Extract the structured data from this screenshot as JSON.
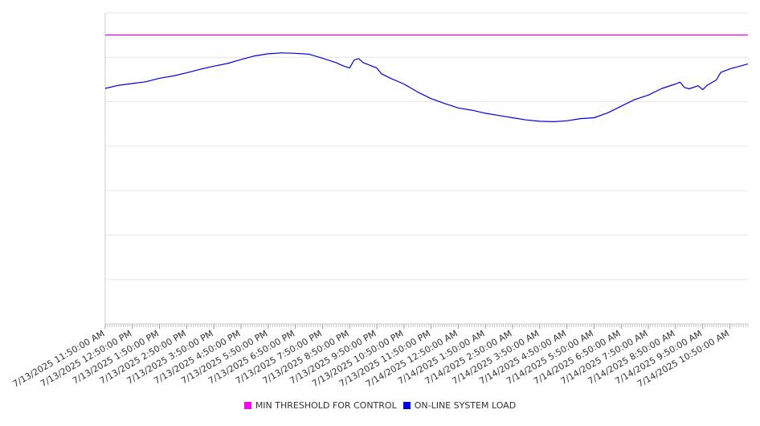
{
  "chart_data": {
    "type": "line",
    "title": "",
    "xlabel": "",
    "ylabel": "",
    "grid": true,
    "legend_position": "bottom-center",
    "x_tick_labels": [
      "7/13/2025 11:50:00 AM",
      "7/13/2025 12:50:00 PM",
      "7/13/2025 1:50:00 PM",
      "7/13/2025 2:50:00 PM",
      "7/13/2025 3:50:00 PM",
      "7/13/2025 4:50:00 PM",
      "7/13/2025 5:50:00 PM",
      "7/13/2025 6:50:00 PM",
      "7/13/2025 7:50:00 PM",
      "7/13/2025 8:50:00 PM",
      "7/13/2025 9:50:00 PM",
      "7/13/2025 10:50:00 PM",
      "7/13/2025 11:50:00 PM",
      "7/14/2025 12:50:00 AM",
      "7/14/2025 1:50:00 AM",
      "7/14/2025 2:50:00 AM",
      "7/14/2025 3:50:00 AM",
      "7/14/2025 4:50:00 AM",
      "7/14/2025 5:50:00 AM",
      "7/14/2025 6:50:00 AM",
      "7/14/2025 7:50:00 AM",
      "7/14/2025 8:50:00 AM",
      "7/14/2025 9:50:00 AM",
      "7/14/2025 10:50:00 AM"
    ],
    "x_range": [
      "7/13/2025 11:50:00 AM",
      "7/14/2025 11:30:00 AM"
    ],
    "y_range": [
      0,
      700
    ],
    "y_grid_step": 100,
    "series": [
      {
        "name": "MIN THRESHOLD FOR CONTROL",
        "color": "#ff00ff",
        "points": [
          [
            "7/13/2025 11:50:00 AM",
            650
          ],
          [
            "7/14/2025 11:30:00 AM",
            650
          ]
        ]
      },
      {
        "name": "ON-LINE SYSTEM LOAD",
        "color": "#0000dd",
        "points": [
          [
            "7/13/2025 11:50:00 AM",
            530
          ],
          [
            "7/13/2025 12:20:00 PM",
            537
          ],
          [
            "7/13/2025 12:50:00 PM",
            541
          ],
          [
            "7/13/2025 1:20:00 PM",
            545
          ],
          [
            "7/13/2025 1:50:00 PM",
            553
          ],
          [
            "7/13/2025 2:20:00 PM",
            558
          ],
          [
            "7/13/2025 2:50:00 PM",
            565
          ],
          [
            "7/13/2025 3:20:00 PM",
            573
          ],
          [
            "7/13/2025 3:50:00 PM",
            580
          ],
          [
            "7/13/2025 4:20:00 PM",
            586
          ],
          [
            "7/13/2025 4:50:00 PM",
            595
          ],
          [
            "7/13/2025 5:20:00 PM",
            603
          ],
          [
            "7/13/2025 5:50:00 PM",
            608
          ],
          [
            "7/13/2025 6:20:00 PM",
            610
          ],
          [
            "7/13/2025 6:50:00 PM",
            609
          ],
          [
            "7/13/2025 7:20:00 PM",
            607
          ],
          [
            "7/13/2025 7:50:00 PM",
            598
          ],
          [
            "7/13/2025 8:20:00 PM",
            588
          ],
          [
            "7/13/2025 8:35:00 PM",
            581
          ],
          [
            "7/13/2025 8:50:00 PM",
            576
          ],
          [
            "7/13/2025 9:00:00 PM",
            594
          ],
          [
            "7/13/2025 9:10:00 PM",
            597
          ],
          [
            "7/13/2025 9:20:00 PM",
            588
          ],
          [
            "7/13/2025 9:50:00 PM",
            576
          ],
          [
            "7/13/2025 10:00:00 PM",
            563
          ],
          [
            "7/13/2025 10:20:00 PM",
            553
          ],
          [
            "7/13/2025 10:50:00 PM",
            540
          ],
          [
            "7/13/2025 11:20:00 PM",
            522
          ],
          [
            "7/13/2025 11:50:00 PM",
            507
          ],
          [
            "7/14/2025 12:20:00 AM",
            496
          ],
          [
            "7/14/2025 12:50:00 AM",
            486
          ],
          [
            "7/14/2025 1:20:00 AM",
            481
          ],
          [
            "7/14/2025 1:50:00 AM",
            474
          ],
          [
            "7/14/2025 2:20:00 AM",
            469
          ],
          [
            "7/14/2025 2:50:00 AM",
            464
          ],
          [
            "7/14/2025 3:20:00 AM",
            459
          ],
          [
            "7/14/2025 3:50:00 AM",
            456
          ],
          [
            "7/14/2025 4:20:00 AM",
            455
          ],
          [
            "7/14/2025 4:50:00 AM",
            457
          ],
          [
            "7/14/2025 5:20:00 AM",
            462
          ],
          [
            "7/14/2025 5:50:00 AM",
            464
          ],
          [
            "7/14/2025 6:20:00 AM",
            475
          ],
          [
            "7/14/2025 6:50:00 AM",
            490
          ],
          [
            "7/14/2025 7:20:00 AM",
            505
          ],
          [
            "7/14/2025 7:50:00 AM",
            515
          ],
          [
            "7/14/2025 8:20:00 AM",
            530
          ],
          [
            "7/14/2025 8:50:00 AM",
            540
          ],
          [
            "7/14/2025 9:00:00 AM",
            544
          ],
          [
            "7/14/2025 9:10:00 AM",
            532
          ],
          [
            "7/14/2025 9:20:00 AM",
            529
          ],
          [
            "7/14/2025 9:40:00 AM",
            536
          ],
          [
            "7/14/2025 9:50:00 AM",
            527
          ],
          [
            "7/14/2025 10:00:00 AM",
            537
          ],
          [
            "7/14/2025 10:20:00 AM",
            549
          ],
          [
            "7/14/2025 10:30:00 AM",
            566
          ],
          [
            "7/14/2025 10:50:00 AM",
            574
          ],
          [
            "7/14/2025 11:30:00 AM",
            585
          ]
        ]
      }
    ]
  }
}
